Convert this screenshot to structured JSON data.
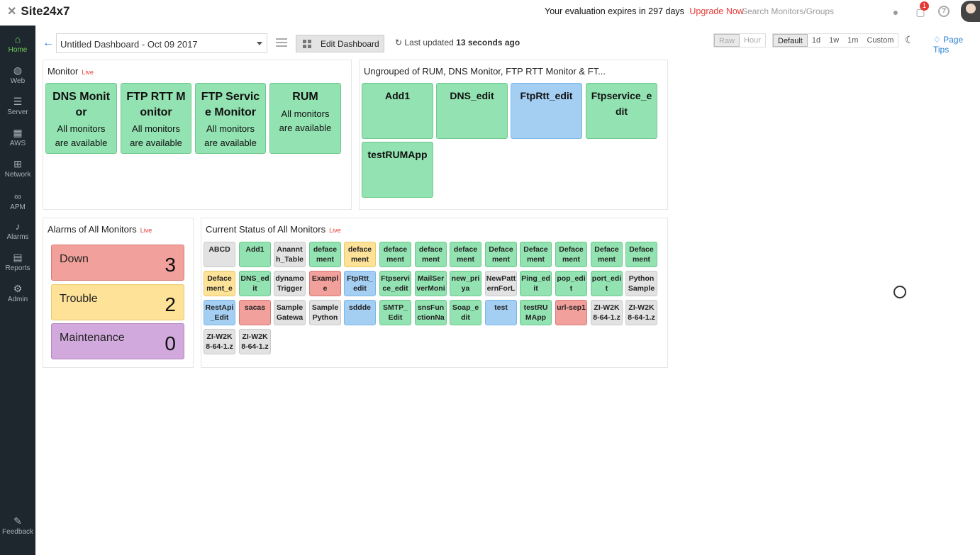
{
  "app": {
    "logo": "Site24x7"
  },
  "header": {
    "evaluation_text": "Your evaluation expires in 297 days",
    "upgrade_label": "Upgrade Now",
    "search_placeholder": "Search Monitors/Groups",
    "notification_count": "1"
  },
  "sidebar": {
    "items": [
      {
        "label": "Home",
        "icon": "home-icon"
      },
      {
        "label": "Web",
        "icon": "globe-icon"
      },
      {
        "label": "Server",
        "icon": "server-icon"
      },
      {
        "label": "AWS",
        "icon": "aws-icon"
      },
      {
        "label": "Network",
        "icon": "network-icon"
      },
      {
        "label": "APM",
        "icon": "binoculars-icon"
      },
      {
        "label": "Alarms",
        "icon": "bell-icon"
      },
      {
        "label": "Reports",
        "icon": "reports-icon"
      },
      {
        "label": "Admin",
        "icon": "admin-icon"
      }
    ],
    "feedback_label": "Feedback"
  },
  "toolbar": {
    "dashboard_title": "Untitled Dashboard - Oct 09 2017",
    "edit_label": "Edit Dashboard",
    "last_updated_prefix": "Last updated",
    "last_updated_value": "13 seconds ago",
    "mode_options": [
      "Raw",
      "Hour"
    ],
    "range_options": [
      "Default",
      "1d",
      "1w",
      "1m",
      "Custom"
    ],
    "range_selected": "Default",
    "page_tips_label": "Page Tips"
  },
  "monitor_widget": {
    "title": "Monitor",
    "live": "Live",
    "tiles": [
      {
        "name_line1": "DNS Monit",
        "name_line2": "or",
        "status_line1": "All monitors",
        "status_line2": "are available"
      },
      {
        "name_line1": "FTP RTT M",
        "name_line2": "onitor",
        "status_line1": "All monitors",
        "status_line2": "are available"
      },
      {
        "name_line1": "FTP Servic",
        "name_line2": "e Monitor",
        "status_line1": "All monitors",
        "status_line2": "are available"
      },
      {
        "name_line1": "RUM",
        "name_line2": "",
        "status_line1": "All monitors",
        "status_line2": "are available"
      }
    ]
  },
  "ungrouped_widget": {
    "title": "Ungrouped of RUM, DNS Monitor, FTP RTT Monitor & FT...",
    "tiles": [
      {
        "name_line1": "Add1",
        "name_line2": "",
        "status": "up"
      },
      {
        "name_line1": "DNS_edit",
        "name_line2": "",
        "status": "up"
      },
      {
        "name_line1": "FtpRtt_edit",
        "name_line2": "",
        "status": "blue"
      },
      {
        "name_line1": "Ftpservice_e",
        "name_line2": "dit",
        "status": "up"
      },
      {
        "name_line1": "testRUMApp",
        "name_line2": "",
        "status": "up"
      }
    ]
  },
  "alarms_widget": {
    "title": "Alarms of All Monitors",
    "live": "Live",
    "rows": [
      {
        "label": "Down",
        "count": "3",
        "color": "#f2a09b",
        "border": "#d97a75"
      },
      {
        "label": "Trouble",
        "count": "2",
        "color": "#fde298",
        "border": "#e8c96b"
      },
      {
        "label": "Maintenance",
        "count": "0",
        "color": "#d2a9dc",
        "border": "#b487c0"
      }
    ]
  },
  "status_widget": {
    "title": "Current Status of All Monitors",
    "live": "Live",
    "tiles": [
      {
        "l1": "ABCD",
        "l2": "",
        "s": "gray"
      },
      {
        "l1": "Add1",
        "l2": "",
        "s": "up"
      },
      {
        "l1": "Anannt",
        "l2": "h_Table",
        "s": "gray"
      },
      {
        "l1": "deface",
        "l2": "ment",
        "s": "up"
      },
      {
        "l1": "deface",
        "l2": "ment",
        "s": "trouble"
      },
      {
        "l1": "deface",
        "l2": "ment",
        "s": "up"
      },
      {
        "l1": "deface",
        "l2": "ment",
        "s": "up"
      },
      {
        "l1": "deface",
        "l2": "ment",
        "s": "up"
      },
      {
        "l1": "Deface",
        "l2": "ment",
        "s": "up"
      },
      {
        "l1": "Deface",
        "l2": "ment",
        "s": "up"
      },
      {
        "l1": "Deface",
        "l2": "ment",
        "s": "up"
      },
      {
        "l1": "Deface",
        "l2": "ment",
        "s": "up"
      },
      {
        "l1": "Deface",
        "l2": "ment",
        "s": "up"
      },
      {
        "l1": "Deface",
        "l2": "ment_e",
        "s": "trouble"
      },
      {
        "l1": "DNS_ed",
        "l2": "it",
        "s": "up"
      },
      {
        "l1": "dynamo",
        "l2": "Trigger",
        "s": "gray"
      },
      {
        "l1": "Exampl",
        "l2": "e",
        "s": "down"
      },
      {
        "l1": "FtpRtt_",
        "l2": "edit",
        "s": "blue"
      },
      {
        "l1": "Ftpservi",
        "l2": "ce_edit",
        "s": "up"
      },
      {
        "l1": "MailSer",
        "l2": "verMoni",
        "s": "up"
      },
      {
        "l1": "new_pri",
        "l2": "ya",
        "s": "up"
      },
      {
        "l1": "NewPatt",
        "l2": "ernForL",
        "s": "gray"
      },
      {
        "l1": "Ping_ed",
        "l2": "it",
        "s": "up"
      },
      {
        "l1": "pop_edi",
        "l2": "t",
        "s": "up"
      },
      {
        "l1": "port_edi",
        "l2": "t",
        "s": "up"
      },
      {
        "l1": "Python",
        "l2": "Sample",
        "s": "gray"
      },
      {
        "l1": "RestApi",
        "l2": "_Edit",
        "s": "blue"
      },
      {
        "l1": "sacas",
        "l2": "",
        "s": "down"
      },
      {
        "l1": "Sample",
        "l2": "Gatewa",
        "s": "gray"
      },
      {
        "l1": "Sample",
        "l2": "Python",
        "s": "gray"
      },
      {
        "l1": "sddde",
        "l2": "",
        "s": "blue"
      },
      {
        "l1": "SMTP_",
        "l2": "Edit",
        "s": "up"
      },
      {
        "l1": "snsFun",
        "l2": "ctionNa",
        "s": "up"
      },
      {
        "l1": "Soap_e",
        "l2": "dit",
        "s": "up"
      },
      {
        "l1": "test",
        "l2": "",
        "s": "blue"
      },
      {
        "l1": "testRU",
        "l2": "MApp",
        "s": "up"
      },
      {
        "l1": "url-sep1",
        "l2": "",
        "s": "down"
      },
      {
        "l1": "ZI-W2K",
        "l2": "8-64-1.z",
        "s": "gray"
      },
      {
        "l1": "ZI-W2K",
        "l2": "8-64-1.z",
        "s": "gray"
      },
      {
        "l1": "ZI-W2K",
        "l2": "8-64-1.z",
        "s": "gray"
      },
      {
        "l1": "ZI-W2K",
        "l2": "8-64-1.z",
        "s": "gray"
      }
    ]
  }
}
